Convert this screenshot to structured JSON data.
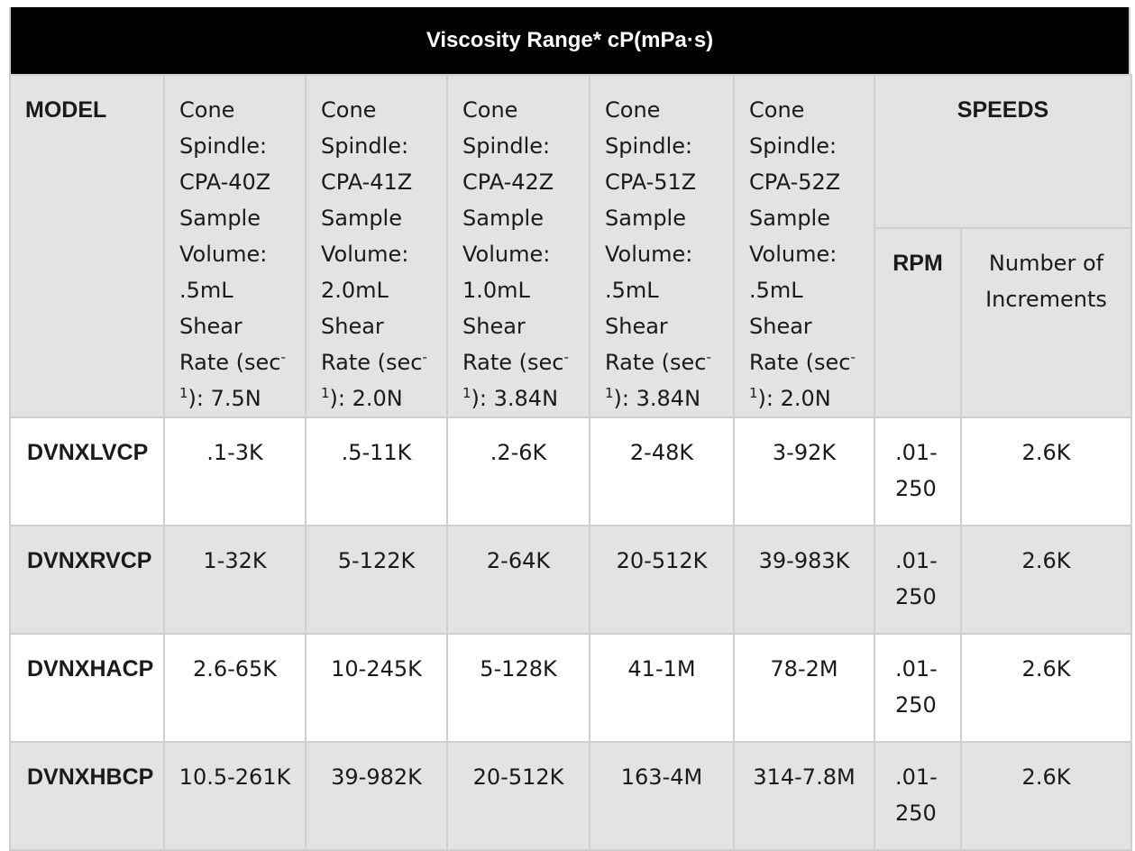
{
  "title": "Viscosity Range* cP(mPa·s)",
  "headers": {
    "model": "MODEL",
    "speeds": "SPEEDS",
    "rpm": "RPM",
    "increments": "Number of Increments",
    "cones": [
      {
        "line1": "Cone Spindle: CPA-40Z Sample Volume: .5mL Shear Rate (sec",
        "sup": "-1",
        "line2": "): 7.5N"
      },
      {
        "line1": "Cone Spindle: CPA-41Z Sample Volume: 2.0mL Shear Rate (sec",
        "sup": "-1",
        "line2": "): 2.0N"
      },
      {
        "line1": "Cone Spindle: CPA-42Z Sample Volume: 1.0mL Shear Rate (sec",
        "sup": "-1",
        "line2": "): 3.84N"
      },
      {
        "line1": "Cone Spindle: CPA-51Z Sample Volume: .5mL Shear Rate (sec",
        "sup": "-1",
        "line2": "): 3.84N"
      },
      {
        "line1": "Cone Spindle: CPA-52Z Sample Volume: .5mL Shear Rate (sec",
        "sup": "-1",
        "line2": "): 2.0N"
      }
    ]
  },
  "rows": [
    {
      "model": "DVNXLVCP",
      "v1": ".1-3K",
      "v2": ".5-11K",
      "v3": ".2-6K",
      "v4": "2-48K",
      "v5": "3-92K",
      "rpm": ".01-250",
      "increments": "2.6K"
    },
    {
      "model": "DVNXRVCP",
      "v1": "1-32K",
      "v2": "5-122K",
      "v3": "2-64K",
      "v4": "20-512K",
      "v5": "39-983K",
      "rpm": ".01-250",
      "increments": "2.6K"
    },
    {
      "model": "DVNXHACP",
      "v1": "2.6-65K",
      "v2": "10-245K",
      "v3": "5-128K",
      "v4": "41-1M",
      "v5": "78-2M",
      "rpm": ".01-250",
      "increments": "2.6K"
    },
    {
      "model": "DVNXHBCP",
      "v1": "10.5-261K",
      "v2": "39-982K",
      "v3": "20-512K",
      "v4": "163-4M",
      "v5": "314-7.8M",
      "rpm": ".01-250",
      "increments": "2.6K"
    }
  ],
  "colors": {
    "banner_bg": "#000000",
    "header_bg": "#e3e3e3",
    "row_alt_bg": "#e3e3e3",
    "border": "#cfcfcf"
  }
}
